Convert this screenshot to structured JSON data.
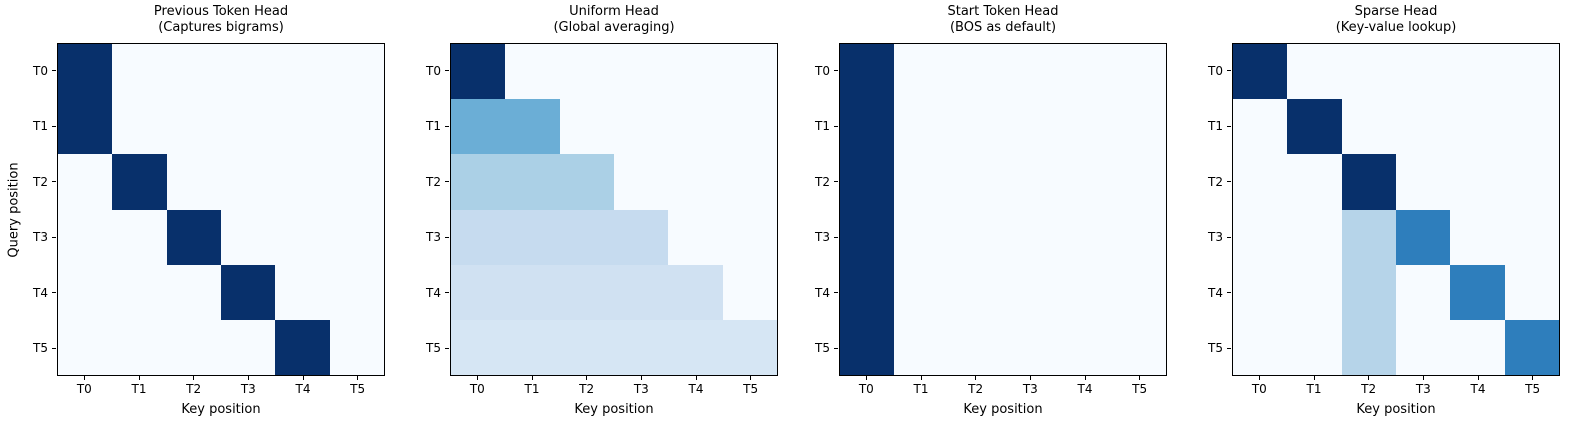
{
  "figure": {
    "background": "#ffffff",
    "text_color": "#000000",
    "axes_edge_color": "#000000"
  },
  "colormap": {
    "name": "Blues",
    "stops": [
      [
        0.0,
        "#f7fbff"
      ],
      [
        0.125,
        "#deebf7"
      ],
      [
        0.25,
        "#c6dbef"
      ],
      [
        0.375,
        "#9ecae1"
      ],
      [
        0.5,
        "#6baed6"
      ],
      [
        0.625,
        "#4292c6"
      ],
      [
        0.75,
        "#2171b5"
      ],
      [
        0.875,
        "#08519c"
      ],
      [
        1.0,
        "#08306b"
      ]
    ]
  },
  "chart_data": [
    {
      "type": "heatmap",
      "title": "Previous Token Head",
      "subtitle": "(Captures bigrams)",
      "xlabel": "Key position",
      "ylabel": "Query position",
      "x_ticks": [
        "T0",
        "T1",
        "T2",
        "T3",
        "T4",
        "T5"
      ],
      "y_ticks": [
        "T0",
        "T1",
        "T2",
        "T3",
        "T4",
        "T5"
      ],
      "vmin": 0,
      "vmax": 1,
      "grid": false,
      "values": [
        [
          1,
          0,
          0,
          0,
          0,
          0
        ],
        [
          1,
          0,
          0,
          0,
          0,
          0
        ],
        [
          0,
          1,
          0,
          0,
          0,
          0
        ],
        [
          0,
          0,
          1,
          0,
          0,
          0
        ],
        [
          0,
          0,
          0,
          1,
          0,
          0
        ],
        [
          0,
          0,
          0,
          0,
          1,
          0
        ]
      ]
    },
    {
      "type": "heatmap",
      "title": "Uniform Head",
      "subtitle": "(Global averaging)",
      "xlabel": "Key position",
      "ylabel": "",
      "x_ticks": [
        "T0",
        "T1",
        "T2",
        "T3",
        "T4",
        "T5"
      ],
      "y_ticks": [
        "T0",
        "T1",
        "T2",
        "T3",
        "T4",
        "T5"
      ],
      "vmin": 0,
      "vmax": 1,
      "grid": false,
      "values": [
        [
          1,
          0,
          0,
          0,
          0,
          0
        ],
        [
          0.5,
          0.5,
          0,
          0,
          0,
          0
        ],
        [
          0.333,
          0.333,
          0.333,
          0,
          0,
          0
        ],
        [
          0.25,
          0.25,
          0.25,
          0.25,
          0,
          0
        ],
        [
          0.2,
          0.2,
          0.2,
          0.2,
          0.2,
          0
        ],
        [
          0.167,
          0.167,
          0.167,
          0.167,
          0.167,
          0.167
        ]
      ]
    },
    {
      "type": "heatmap",
      "title": "Start Token Head",
      "subtitle": "(BOS as default)",
      "xlabel": "Key position",
      "ylabel": "",
      "x_ticks": [
        "T0",
        "T1",
        "T2",
        "T3",
        "T4",
        "T5"
      ],
      "y_ticks": [
        "T0",
        "T1",
        "T2",
        "T3",
        "T4",
        "T5"
      ],
      "vmin": 0,
      "vmax": 1,
      "grid": false,
      "values": [
        [
          1,
          0,
          0,
          0,
          0,
          0
        ],
        [
          1,
          0,
          0,
          0,
          0,
          0
        ],
        [
          1,
          0,
          0,
          0,
          0,
          0
        ],
        [
          1,
          0,
          0,
          0,
          0,
          0
        ],
        [
          1,
          0,
          0,
          0,
          0,
          0
        ],
        [
          1,
          0,
          0,
          0,
          0,
          0
        ]
      ]
    },
    {
      "type": "heatmap",
      "title": "Sparse Head",
      "subtitle": "(Key-value lookup)",
      "xlabel": "Key position",
      "ylabel": "",
      "x_ticks": [
        "T0",
        "T1",
        "T2",
        "T3",
        "T4",
        "T5"
      ],
      "y_ticks": [
        "T0",
        "T1",
        "T2",
        "T3",
        "T4",
        "T5"
      ],
      "vmin": 0,
      "vmax": 1,
      "grid": false,
      "values": [
        [
          1,
          0,
          0,
          0,
          0,
          0
        ],
        [
          0,
          1,
          0,
          0,
          0,
          0
        ],
        [
          0,
          0,
          1,
          0,
          0,
          0
        ],
        [
          0,
          0,
          0.3,
          0.7,
          0,
          0
        ],
        [
          0,
          0,
          0.3,
          0,
          0.7,
          0
        ],
        [
          0,
          0,
          0.3,
          0,
          0,
          0.7
        ]
      ]
    }
  ]
}
